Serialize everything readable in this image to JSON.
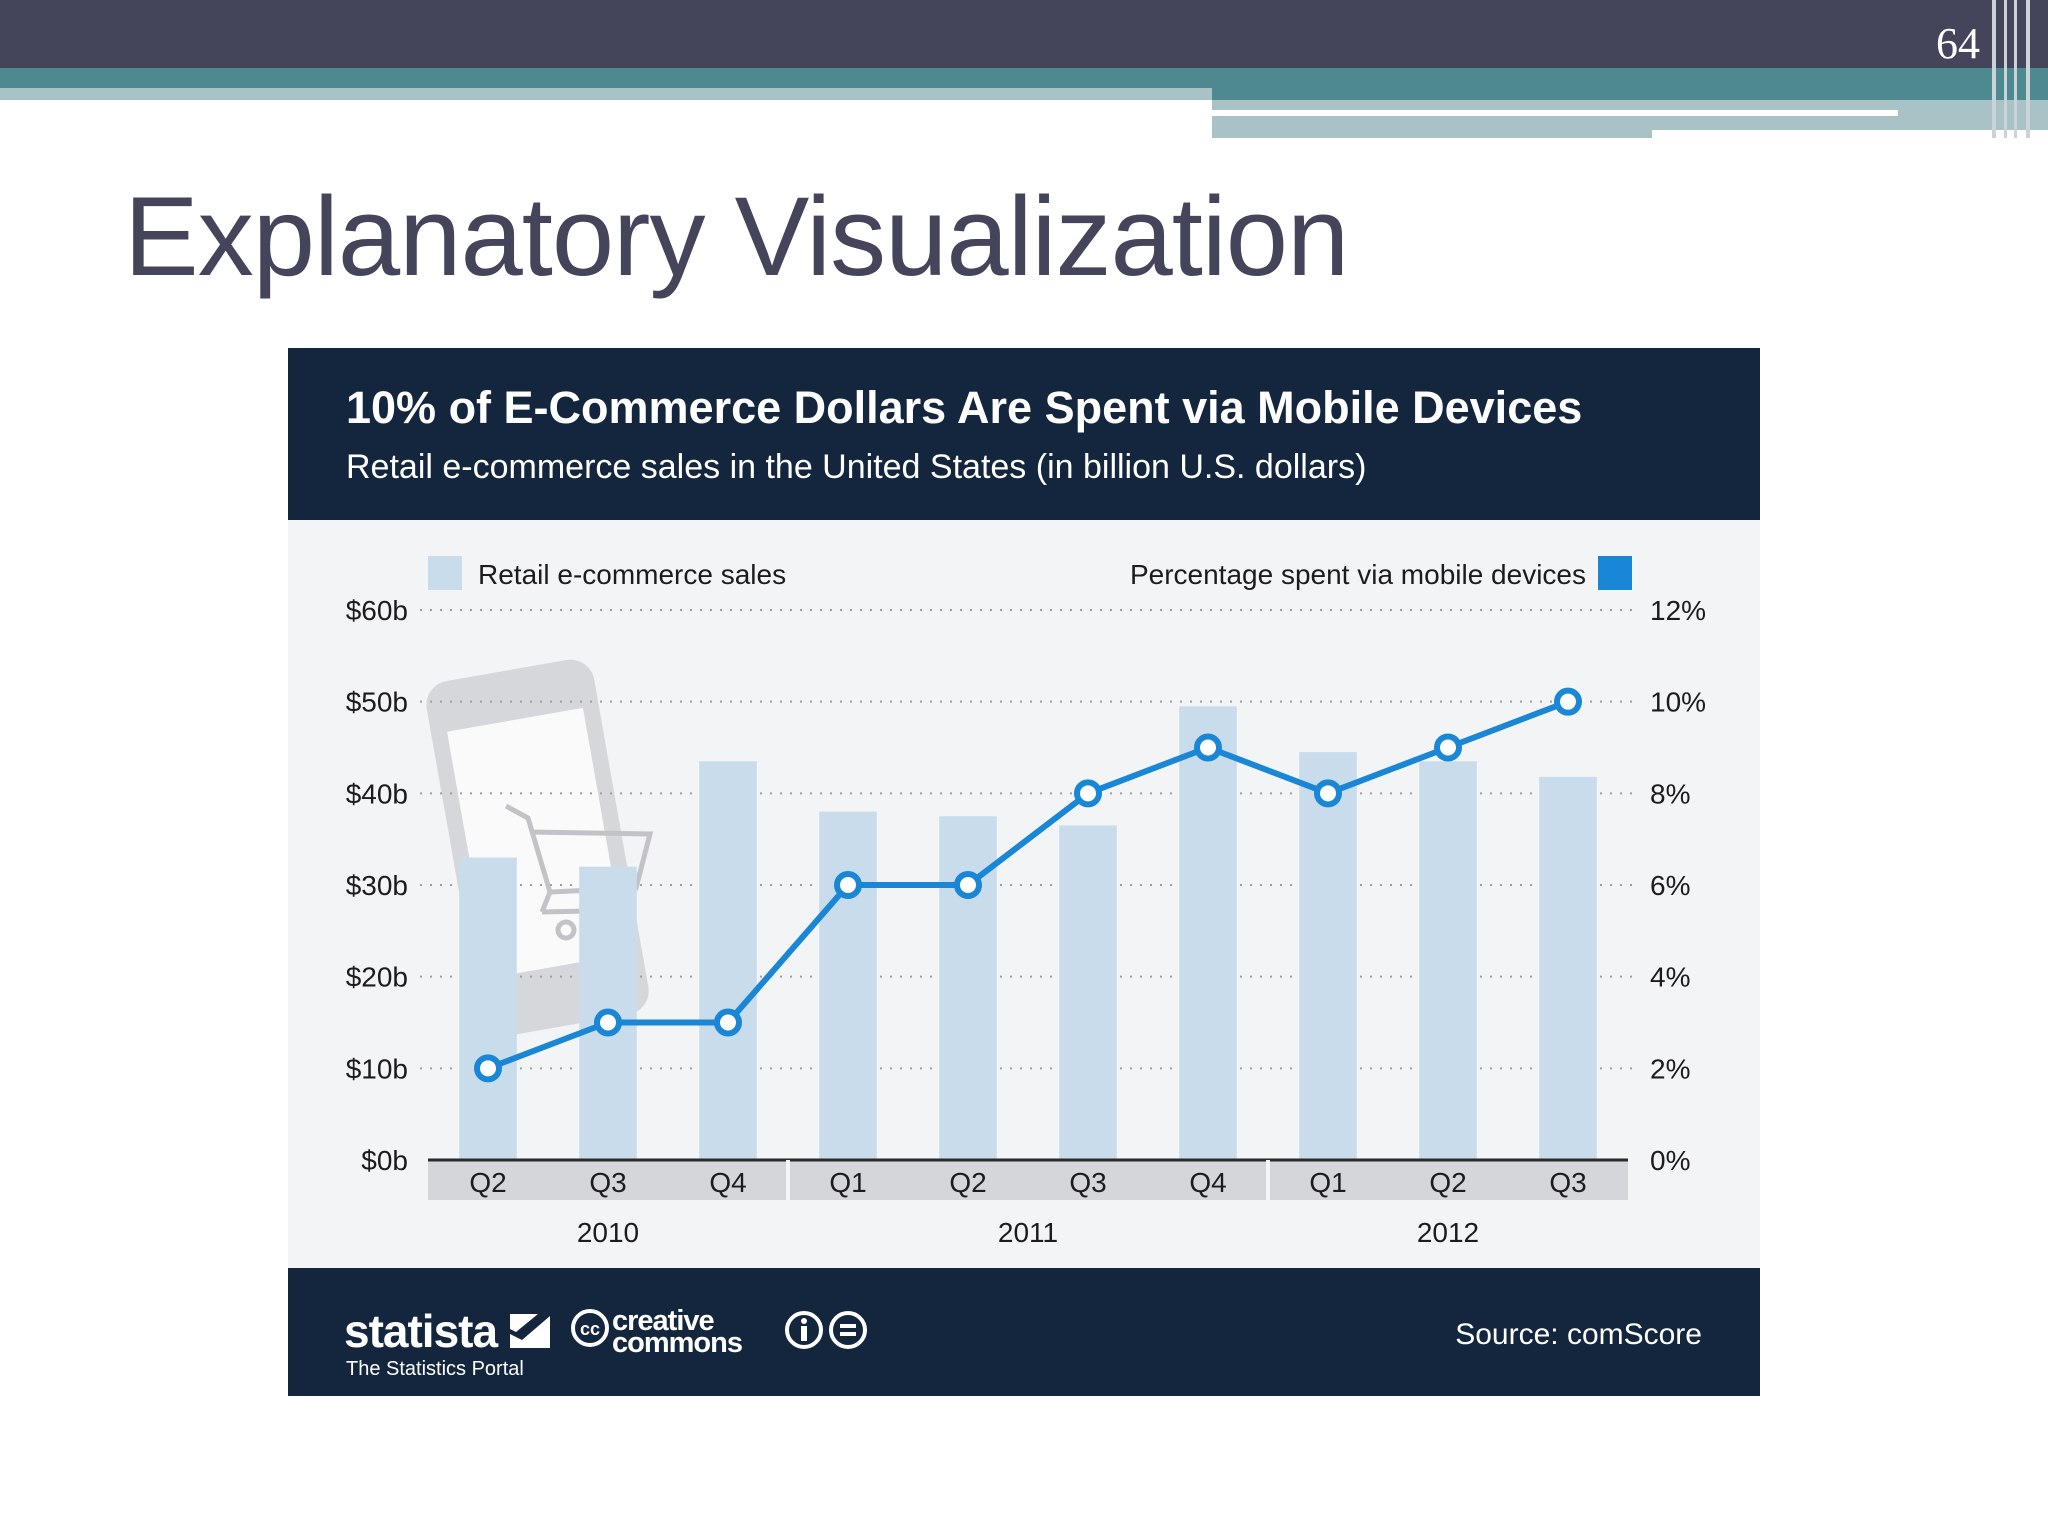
{
  "slide": {
    "number": "64",
    "title": "Explanatory Visualization"
  },
  "chart_data": {
    "type": "bar",
    "title": "10% of E-Commerce Dollars Are Spent via Mobile Devices",
    "subtitle": "Retail e-commerce sales in the United States (in billion U.S. dollars)",
    "categories": [
      "Q2",
      "Q3",
      "Q4",
      "Q1",
      "Q2",
      "Q3",
      "Q4",
      "Q1",
      "Q2",
      "Q3"
    ],
    "groups": [
      {
        "label": "2010",
        "count": 3
      },
      {
        "label": "2011",
        "count": 4
      },
      {
        "label": "2012",
        "count": 3
      }
    ],
    "series": [
      {
        "name": "Retail e-commerce sales",
        "type": "bar",
        "axis": "left",
        "color": "#c9dcec",
        "values": [
          33,
          32,
          43.5,
          38,
          37.5,
          36.5,
          49.5,
          44.5,
          43.5,
          41.8
        ]
      },
      {
        "name": "Percentage spent via mobile devices",
        "type": "line",
        "axis": "right",
        "color": "#1a86d6",
        "values": [
          2,
          3,
          3,
          6,
          6,
          8,
          9,
          8,
          9,
          10
        ]
      }
    ],
    "y_left": {
      "min": 0,
      "max": 60,
      "ticks": [
        "$0b",
        "$10b",
        "$20b",
        "$30b",
        "$40b",
        "$50b",
        "$60b"
      ]
    },
    "y_right": {
      "min": 0,
      "max": 12,
      "ticks": [
        "0%",
        "2%",
        "4%",
        "6%",
        "8%",
        "10%",
        "12%"
      ]
    },
    "legend": {
      "left": "Retail e-commerce sales",
      "right": "Percentage spent via mobile devices"
    },
    "grid": true
  },
  "footer": {
    "brand": "statista",
    "tagline": "The Statistics Portal",
    "license_line1": "creative",
    "license_line2": "commons",
    "source": "Source: comScore"
  },
  "colors": {
    "header_bg": "#13263e",
    "bar": "#c9dcec",
    "line": "#1a86d6",
    "top_bar": "#44455a",
    "accent_teal": "#4c8a8f"
  }
}
